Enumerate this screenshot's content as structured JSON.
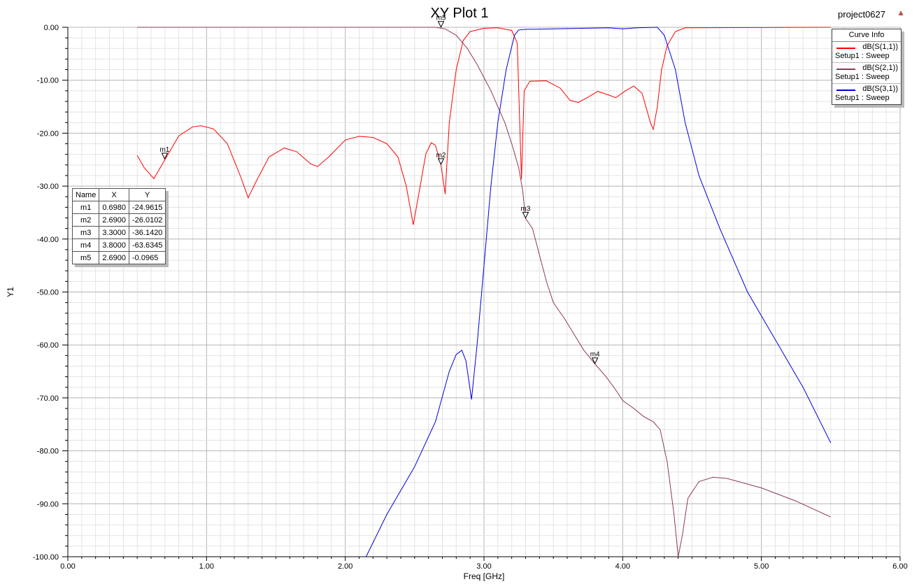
{
  "chart_data": {
    "type": "line",
    "title": "XY Plot 1",
    "project": "project0627",
    "xlabel": "Freq [GHz]",
    "ylabel": "Y1",
    "xlim": [
      0,
      6
    ],
    "ylim": [
      -100,
      0
    ],
    "x_ticks": [
      "0.00",
      "1.00",
      "2.00",
      "3.00",
      "4.00",
      "5.00",
      "6.00"
    ],
    "y_ticks": [
      "0.00",
      "-10.00",
      "-20.00",
      "-30.00",
      "-40.00",
      "-50.00",
      "-60.00",
      "-70.00",
      "-80.00",
      "-90.00",
      "-100.00"
    ],
    "grid": true,
    "legend_position": "top-right",
    "legend_title": "Curve Info",
    "series": [
      {
        "name": "dB(S(1,1))",
        "setup": "Setup1 : Sweep",
        "color": "#ff0000",
        "points": [
          [
            0.5,
            -24.2
          ],
          [
            0.55,
            -26.5
          ],
          [
            0.62,
            -28.6
          ],
          [
            0.7,
            -25
          ],
          [
            0.8,
            -20.5
          ],
          [
            0.9,
            -18.8
          ],
          [
            0.96,
            -18.6
          ],
          [
            1.05,
            -19.2
          ],
          [
            1.15,
            -22
          ],
          [
            1.25,
            -28.5
          ],
          [
            1.3,
            -32.2
          ],
          [
            1.36,
            -29
          ],
          [
            1.45,
            -24.5
          ],
          [
            1.56,
            -22.8
          ],
          [
            1.65,
            -23.5
          ],
          [
            1.75,
            -25.8
          ],
          [
            1.8,
            -26.3
          ],
          [
            1.88,
            -24.5
          ],
          [
            2.0,
            -21.3
          ],
          [
            2.1,
            -20.6
          ],
          [
            2.2,
            -20.8
          ],
          [
            2.3,
            -22
          ],
          [
            2.38,
            -24.5
          ],
          [
            2.44,
            -30
          ],
          [
            2.49,
            -37.3
          ],
          [
            2.54,
            -30
          ],
          [
            2.58,
            -24
          ],
          [
            2.62,
            -21.8
          ],
          [
            2.65,
            -22.3
          ],
          [
            2.69,
            -26.0
          ],
          [
            2.72,
            -31.5
          ],
          [
            2.75,
            -18
          ],
          [
            2.8,
            -8
          ],
          [
            2.85,
            -2.5
          ],
          [
            2.9,
            -0.8
          ],
          [
            3.0,
            -0.2
          ],
          [
            3.1,
            -0.1
          ],
          [
            3.2,
            -0.6
          ],
          [
            3.24,
            -3
          ],
          [
            3.27,
            -28.7
          ],
          [
            3.29,
            -12
          ],
          [
            3.33,
            -10.2
          ],
          [
            3.45,
            -10.1
          ],
          [
            3.55,
            -11.5
          ],
          [
            3.62,
            -13.8
          ],
          [
            3.68,
            -14.2
          ],
          [
            3.75,
            -13.2
          ],
          [
            3.82,
            -12.1
          ],
          [
            3.9,
            -12.8
          ],
          [
            3.95,
            -13.3
          ],
          [
            4.02,
            -12
          ],
          [
            4.08,
            -11.1
          ],
          [
            4.14,
            -12.5
          ],
          [
            4.2,
            -18
          ],
          [
            4.22,
            -19.3
          ],
          [
            4.25,
            -15
          ],
          [
            4.28,
            -8
          ],
          [
            4.32,
            -3.5
          ],
          [
            4.38,
            -0.8
          ],
          [
            4.45,
            -0.1
          ],
          [
            5.5,
            0
          ]
        ]
      },
      {
        "name": "dB(S(2,1))",
        "setup": "Setup1 : Sweep",
        "color": "#8b3a55",
        "points": [
          [
            0.5,
            0
          ],
          [
            2.65,
            0
          ],
          [
            2.72,
            -0.3
          ],
          [
            2.8,
            -1.5
          ],
          [
            2.88,
            -4
          ],
          [
            2.95,
            -7
          ],
          [
            3.05,
            -12
          ],
          [
            3.15,
            -18
          ],
          [
            3.2,
            -22
          ],
          [
            3.25,
            -26.5
          ],
          [
            3.28,
            -31
          ],
          [
            3.3,
            -36.1
          ],
          [
            3.35,
            -38
          ],
          [
            3.4,
            -43
          ],
          [
            3.45,
            -48
          ],
          [
            3.5,
            -52
          ],
          [
            3.58,
            -55
          ],
          [
            3.65,
            -58
          ],
          [
            3.72,
            -61
          ],
          [
            3.8,
            -63.6
          ],
          [
            3.88,
            -66
          ],
          [
            3.95,
            -68.5
          ],
          [
            4.0,
            -70.5
          ],
          [
            4.08,
            -72
          ],
          [
            4.15,
            -73.5
          ],
          [
            4.22,
            -74.5
          ],
          [
            4.27,
            -76
          ],
          [
            4.32,
            -82
          ],
          [
            4.37,
            -92
          ],
          [
            4.4,
            -100
          ],
          [
            4.43,
            -96
          ],
          [
            4.47,
            -89
          ],
          [
            4.55,
            -85.8
          ],
          [
            4.65,
            -85
          ],
          [
            4.75,
            -85.2
          ],
          [
            5.0,
            -87
          ],
          [
            5.25,
            -89.5
          ],
          [
            5.5,
            -92.5
          ]
        ]
      },
      {
        "name": "dB(S(3,1))",
        "setup": "Setup1 : Sweep",
        "color": "#0000dd",
        "points": [
          [
            2.15,
            -100
          ],
          [
            2.3,
            -92
          ],
          [
            2.5,
            -83
          ],
          [
            2.65,
            -74.5
          ],
          [
            2.75,
            -65
          ],
          [
            2.8,
            -61.8
          ],
          [
            2.84,
            -61
          ],
          [
            2.87,
            -63
          ],
          [
            2.91,
            -70.3
          ],
          [
            2.95,
            -60
          ],
          [
            3.0,
            -45
          ],
          [
            3.05,
            -30
          ],
          [
            3.1,
            -18
          ],
          [
            3.16,
            -8
          ],
          [
            3.22,
            -1.5
          ],
          [
            3.25,
            -0.5
          ],
          [
            3.3,
            -0.4
          ],
          [
            3.5,
            -0.3
          ],
          [
            3.7,
            -0.2
          ],
          [
            3.9,
            -0.1
          ],
          [
            4.0,
            -0.3
          ],
          [
            4.1,
            -0.1
          ],
          [
            4.25,
            0
          ],
          [
            4.3,
            -1.5
          ],
          [
            4.38,
            -8
          ],
          [
            4.45,
            -18
          ],
          [
            4.55,
            -28
          ],
          [
            4.7,
            -38
          ],
          [
            4.9,
            -50
          ],
          [
            5.1,
            -59
          ],
          [
            5.3,
            -68
          ],
          [
            5.5,
            -78.5
          ]
        ]
      }
    ],
    "markers": [
      {
        "name": "m1",
        "x": 0.698,
        "y": -24.9615,
        "series": 0
      },
      {
        "name": "m2",
        "x": 2.69,
        "y": -26.0102,
        "series": 0
      },
      {
        "name": "m3",
        "x": 3.3,
        "y": -36.142,
        "series": 1
      },
      {
        "name": "m4",
        "x": 3.8,
        "y": -63.6345,
        "series": 1
      },
      {
        "name": "m5",
        "x": 2.69,
        "y": -0.0965,
        "series": 1
      }
    ]
  },
  "marker_table": {
    "headers": [
      "Name",
      "X",
      "Y"
    ],
    "rows": [
      [
        "m1",
        "0.6980",
        "-24.9615"
      ],
      [
        "m2",
        "2.6900",
        "-26.0102"
      ],
      [
        "m3",
        "3.3000",
        "-36.1420"
      ],
      [
        "m4",
        "3.8000",
        "-63.6345"
      ],
      [
        "m5",
        "2.6900",
        "-0.0965"
      ]
    ]
  }
}
